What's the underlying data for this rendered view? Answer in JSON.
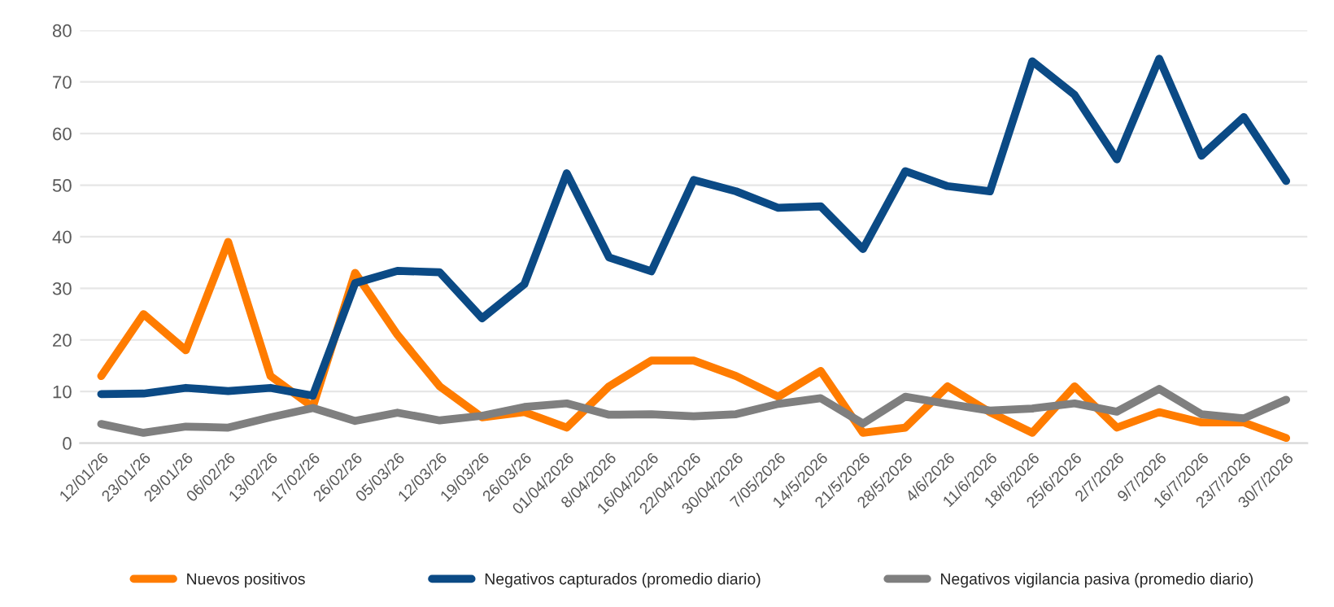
{
  "chart_data": {
    "type": "line",
    "categories": [
      "12/01/26",
      "23/01/26",
      "29/01/26",
      "06/02/26",
      "13/02/26",
      "17/02/26",
      "26/02/26",
      "05/03/26",
      "12/03/26",
      "19/03/26",
      "26/03/26",
      "01/04/2026",
      "8/04/2026",
      "16/04/2026",
      "22/04/2026",
      "30/04/2026",
      "7/05/2026",
      "14/5/2026",
      "21/5/2026",
      "28/5/2026",
      "4/6/2026",
      "11/6/2026",
      "18/6/2026",
      "25/6/2026",
      "2/7/2026",
      "9/7/2026",
      "16/7/2026",
      "23/7/2026",
      "30/7/2026"
    ],
    "series": [
      {
        "name": "Nuevos positivos",
        "color": "#ff7c00",
        "values": [
          13,
          25,
          18,
          39,
          13,
          7,
          33,
          21,
          11,
          5,
          6,
          3,
          11,
          16,
          16,
          13,
          9,
          14,
          2,
          3,
          11,
          6,
          2,
          11,
          3,
          6,
          4,
          4,
          1
        ]
      },
      {
        "name": "Negativos capturados (promedio diario)",
        "color": "#0b4a85",
        "values": [
          9.5,
          9.6,
          10.7,
          10.1,
          10.7,
          9.2,
          31,
          33.4,
          33.1,
          24.2,
          30.8,
          52.3,
          36,
          33.3,
          51,
          48.8,
          45.6,
          45.9,
          37.6,
          52.7,
          49.8,
          48.8,
          74,
          67.5,
          55,
          74.5,
          55.7,
          63.2,
          50.8
        ]
      },
      {
        "name": "Negativos vigilancia pasiva (promedio diario)",
        "color": "#7f7f7f",
        "values": [
          3.7,
          2,
          3.2,
          3,
          5,
          6.8,
          4.3,
          5.9,
          4.4,
          5.3,
          7,
          7.7,
          5.5,
          5.6,
          5.2,
          5.6,
          7.6,
          8.7,
          3.8,
          9,
          7.6,
          6.3,
          6.7,
          7.7,
          6.1,
          10.5,
          5.6,
          4.8,
          8.4
        ]
      }
    ],
    "ylim": [
      0,
      80
    ],
    "yticks": [
      0,
      10,
      20,
      30,
      40,
      50,
      60,
      70,
      80
    ],
    "grid": "y",
    "legend": "bottom",
    "marker": "none",
    "line_style": "solid"
  }
}
